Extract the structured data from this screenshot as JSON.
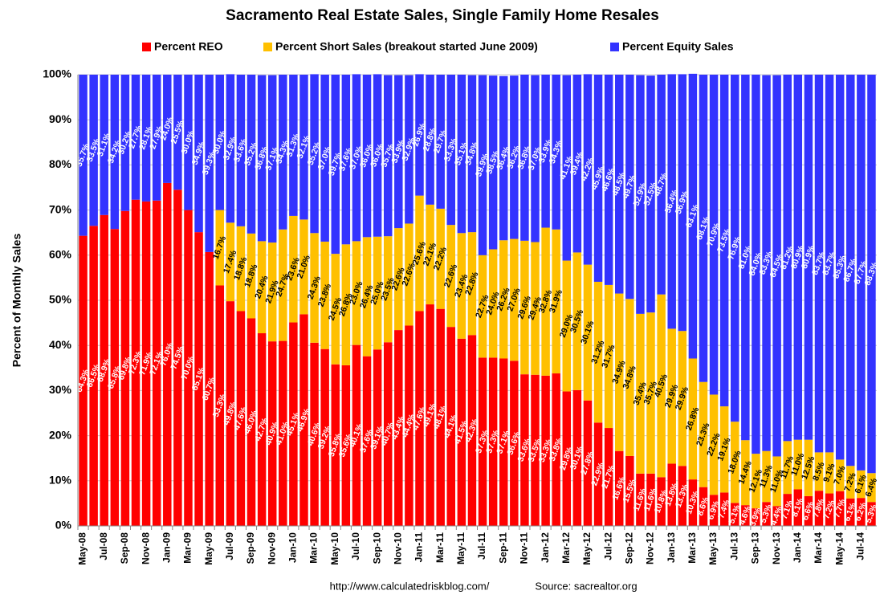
{
  "chart_data": {
    "type": "bar",
    "stacked": true,
    "title": "Sacramento Real Estate Sales, Single Family Home Resales",
    "y_label": "Percent of Monthly Sales",
    "footer_left": "http://www.calculatedriskblog.com/",
    "footer_right": "Source: sacrealtor.org",
    "grid": true,
    "ylim": [
      0,
      100
    ],
    "yticks": [
      {
        "value": 0,
        "label": "0%"
      },
      {
        "value": 10,
        "label": "10%"
      },
      {
        "value": 20,
        "label": "20%"
      },
      {
        "value": 30,
        "label": "30%"
      },
      {
        "value": 40,
        "label": "40%"
      },
      {
        "value": 50,
        "label": "50%"
      },
      {
        "value": 60,
        "label": "60%"
      },
      {
        "value": 70,
        "label": "70%"
      },
      {
        "value": 80,
        "label": "80%"
      },
      {
        "value": 90,
        "label": "90%"
      },
      {
        "value": 100,
        "label": "100%"
      }
    ],
    "categories": [
      "May-08",
      null,
      "Jul-08",
      null,
      "Sep-08",
      null,
      "Nov-08",
      null,
      "Jan-09",
      null,
      "Mar-09",
      null,
      "May-09",
      null,
      "Jul-09",
      null,
      "Sep-09",
      null,
      "Nov-09",
      null,
      "Jan-10",
      null,
      "Mar-10",
      null,
      "May-10",
      null,
      "Jul-10",
      null,
      "Sep-10",
      null,
      "Nov-10",
      null,
      "Jan-11",
      null,
      "Mar-11",
      null,
      "May-11",
      null,
      "Jul-11",
      null,
      "Sep-11",
      null,
      "Nov-11",
      null,
      "Jan-12",
      null,
      "Mar-12",
      null,
      "May-12",
      null,
      "Jul-12",
      null,
      "Sep-12",
      null,
      "Nov-12",
      null,
      "Jan-13",
      null,
      "Mar-13",
      null,
      "May-13",
      null,
      "Jul-13",
      null,
      "Sep-13",
      null,
      "Nov-13",
      null,
      "Jan-14",
      null,
      "Mar-14",
      null,
      "May-14",
      null,
      "Jul-14",
      null
    ],
    "series": [
      {
        "name": "Percent REO",
        "color": "#ff0000",
        "label_color": "#ffffff",
        "values": [
          64.3,
          66.5,
          68.9,
          65.8,
          69.8,
          72.3,
          71.9,
          72.1,
          76.0,
          74.5,
          70.0,
          65.1,
          60.7,
          53.3,
          49.8,
          47.6,
          46.0,
          42.7,
          40.9,
          41.0,
          45.1,
          46.9,
          40.6,
          39.2,
          35.8,
          35.6,
          40.1,
          37.6,
          39.1,
          40.7,
          43.4,
          44.4,
          47.6,
          49.1,
          48.1,
          44.1,
          41.5,
          42.3,
          37.3,
          37.3,
          37.1,
          36.6,
          33.6,
          33.5,
          33.3,
          33.8,
          29.8,
          30.1,
          27.8,
          22.9,
          21.7,
          16.6,
          15.5,
          11.6,
          11.6,
          10.8,
          13.8,
          13.3,
          10.3,
          8.6,
          6.9,
          7.4,
          5.1,
          4.6,
          3.9,
          5.3,
          4.4,
          7.1,
          8.1,
          6.6,
          7.8,
          7.2,
          7.7,
          6.1,
          6.2,
          5.3
        ],
        "value_labels": [
          "64.3%",
          "66.5%",
          "68.9%",
          "65.8%",
          "69.8%",
          "72.3%",
          "71.9%",
          "72.1%",
          "76.0%",
          "74.5%",
          "70.0%",
          "65.1%",
          "60.7%",
          "53.3%",
          "49.8%",
          "47.6%",
          "46.0%",
          "42.7%",
          "40.9%",
          "41.0%",
          "45.1%",
          "46.9%",
          "40.6%",
          "39.2%",
          "35.8%",
          "35.6%",
          "40.1%",
          "37.6%",
          "39.1%",
          "40.7%",
          "43.4%",
          "44.4%",
          "47.6%",
          "49.1%",
          "48.1%",
          "44.1%",
          "41.5%",
          "42.3%",
          "37.3%",
          "37.3%",
          "37.1%",
          "36.6%",
          "33.6%",
          "33.5%",
          "33.3%",
          "33.8%",
          "29.8%",
          "30.1%",
          "27.8%",
          "22.9%",
          "21.7%",
          "16.6%",
          "15.5%",
          "11.6%",
          "11.6%",
          "10.8%",
          "13.8%",
          "13.3%",
          "10.3%",
          "8.6%",
          "6.9%",
          "7.4%",
          "5.1%",
          "4.6%",
          "3.9%",
          "5.3%",
          "4.4%",
          "7.1%",
          "8.1%",
          "6.6%",
          "7.8%",
          "7.2%",
          "7.7%",
          "6.1%",
          "6.2%",
          "5.3%"
        ]
      },
      {
        "name": "Percent Short Sales (breakout started June 2009)",
        "color": "#ffc000",
        "label_color": "#000000",
        "values": [
          null,
          null,
          null,
          null,
          null,
          null,
          null,
          null,
          null,
          null,
          null,
          null,
          null,
          16.7,
          17.4,
          18.8,
          18.8,
          20.4,
          21.9,
          24.7,
          23.6,
          21.0,
          24.3,
          23.8,
          24.5,
          26.8,
          23.0,
          26.4,
          25.0,
          23.5,
          22.6,
          22.6,
          25.6,
          22.1,
          22.2,
          22.6,
          23.4,
          22.8,
          22.7,
          24.0,
          26.2,
          27.0,
          29.6,
          29.4,
          32.8,
          31.9,
          29.0,
          30.5,
          30.1,
          31.2,
          31.7,
          34.9,
          34.8,
          35.4,
          35.7,
          40.5,
          29.9,
          29.9,
          26.8,
          23.3,
          22.2,
          19.1,
          18.0,
          14.4,
          12.1,
          11.3,
          11.0,
          11.7,
          11.0,
          12.5,
          8.5,
          9.1,
          7.0,
          7.2,
          6.1,
          6.4
        ],
        "value_labels": [
          null,
          null,
          null,
          null,
          null,
          null,
          null,
          null,
          null,
          null,
          null,
          null,
          null,
          "16.7%",
          "17.4%",
          "18.8%",
          "18.8%",
          "20.4%",
          "21.9%",
          "24.7%",
          "23.6%",
          "21.0%",
          "24.3%",
          "23.8%",
          "24.5%",
          "26.8%",
          "23.0%",
          "26.4%",
          "25.0%",
          "23.5%",
          "22.6%",
          "22.6%",
          "25.6%",
          "22.1%",
          "22.2%",
          "22.6%",
          "23.4%",
          "22.8%",
          "22.7%",
          "24.0%",
          "26.2%",
          "27.0%",
          "29.6%",
          "29.4%",
          "32.8%",
          "31.9%",
          "29.0%",
          "30.5%",
          "30.1%",
          "31.2%",
          "31.7%",
          "34.9%",
          "34.8%",
          "35.4%",
          "35.7%",
          "40.5%",
          "29.9%",
          "29.9%",
          "26.8%",
          "23.3%",
          "22.2%",
          "19.1%",
          "18.0%",
          "14.4%",
          "12.1%",
          "11.3%",
          "11.0%",
          "11.7%",
          "11.0%",
          "12.5%",
          "8.5%",
          "9.1%",
          "7.0%",
          "7.2%",
          "6.1%",
          "6.4%"
        ]
      },
      {
        "name": "Percent Equity Sales",
        "color": "#3333ff",
        "label_color": "#ffffff",
        "values": [
          35.7,
          33.5,
          31.1,
          34.2,
          30.2,
          27.7,
          28.1,
          27.9,
          24.0,
          25.5,
          30.0,
          34.9,
          39.3,
          30.0,
          32.9,
          33.6,
          35.2,
          36.8,
          37.1,
          34.3,
          31.3,
          32.1,
          35.2,
          37.0,
          39.7,
          37.6,
          37.0,
          36.0,
          36.0,
          35.7,
          33.9,
          32.9,
          26.9,
          28.8,
          29.7,
          33.3,
          35.1,
          34.8,
          39.9,
          38.5,
          36.4,
          36.2,
          36.8,
          37.0,
          33.9,
          34.3,
          41.1,
          39.4,
          42.2,
          45.9,
          46.6,
          48.5,
          49.7,
          52.9,
          52.5,
          48.7,
          56.4,
          56.9,
          63.1,
          68.1,
          70.9,
          73.5,
          76.9,
          81.0,
          84.0,
          83.3,
          84.5,
          81.2,
          80.9,
          80.9,
          83.7,
          83.7,
          85.3,
          86.7,
          87.7,
          88.3
        ],
        "value_labels": [
          "35.7%",
          "33.5%",
          "31.1%",
          "34.2%",
          "30.2%",
          "27.7%",
          "28.1%",
          "27.9%",
          "24.0%",
          "25.5%",
          "30.0%",
          "34.9%",
          "39.3%",
          "30.0%",
          "32.9%",
          "33.6%",
          "35.2%",
          "36.8%",
          "37.1%",
          "34.3%",
          "31.3%",
          "32.1%",
          "35.2%",
          "37.0%",
          "39.7%",
          "37.6%",
          "37.0%",
          "36.0%",
          "36.0%",
          "35.7%",
          "33.9%",
          "32.9%",
          "26.9%",
          "28.8%",
          "29.7%",
          "33.3%",
          "35.1%",
          "34.8%",
          "39.9%",
          "38.5%",
          "36.4%",
          "36.2%",
          "36.8%",
          "37.0%",
          "33.9%",
          "34.3%",
          "41.1%",
          "39.4%",
          "42.2%",
          "45.9%",
          "46.6%",
          "48.5%",
          "49.7%",
          "52.9%",
          "52.5%",
          "48.7%",
          "56.4%",
          "56.9%",
          "63.1%",
          "68.1%",
          "70.9%",
          "73.5%",
          "76.9%",
          "81.0%",
          "84.0%",
          "83.3%",
          "84.5%",
          "81.2%",
          "80.9%",
          "80.9%",
          "83.7%",
          "83.7%",
          "85.3%",
          "86.7%",
          "87.7%",
          "88.3%"
        ]
      }
    ]
  }
}
